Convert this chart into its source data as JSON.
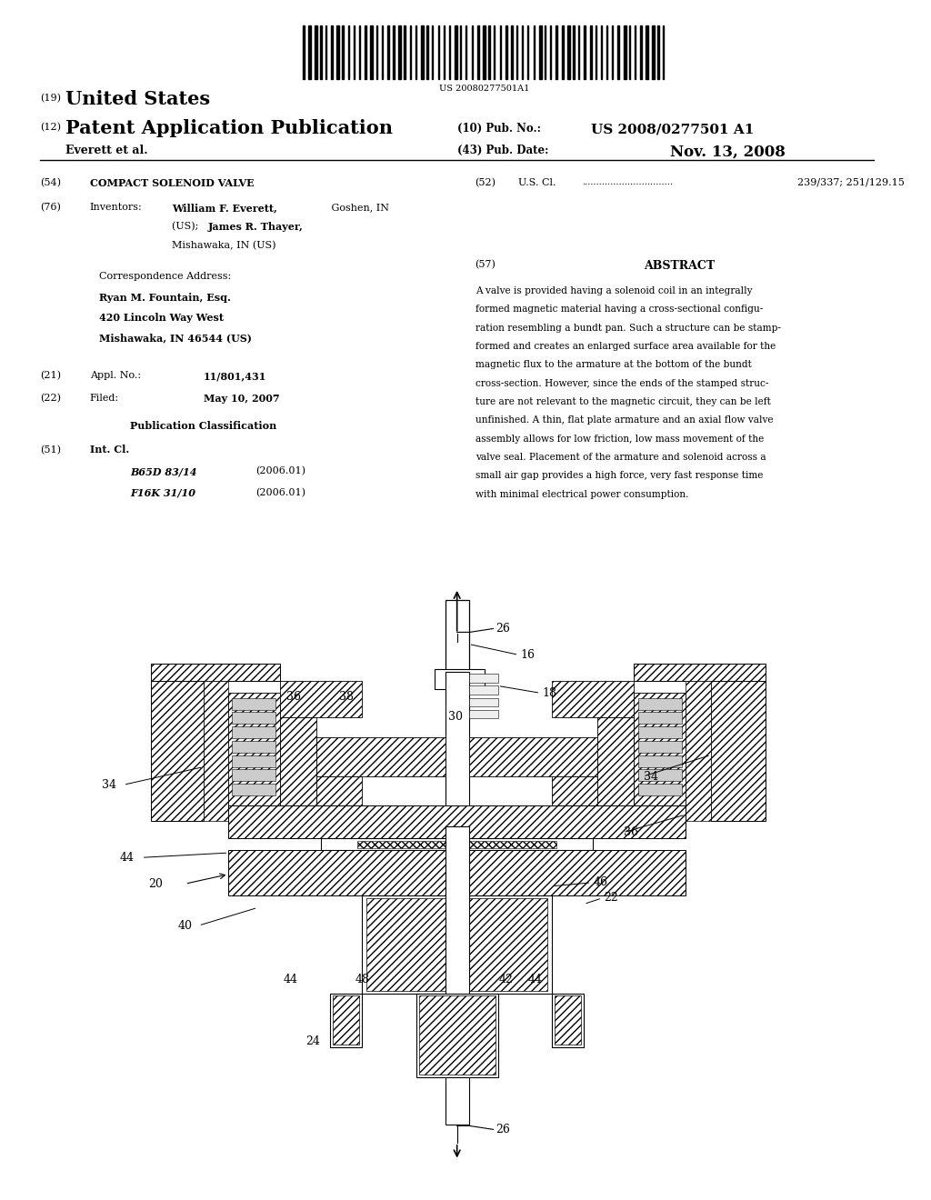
{
  "background_color": "#ffffff",
  "page_width": 10.24,
  "page_height": 13.2,
  "barcode_text": "US 20080277501A1",
  "header": {
    "country_num": "(19)",
    "country": "United States",
    "type_num": "(12)",
    "type": "Patent Application Publication",
    "pub_num_label": "(10) Pub. No.:",
    "pub_num": "US 2008/0277501 A1",
    "inventor_line": "Everett et al.",
    "pub_date_label": "(43) Pub. Date:",
    "pub_date": "Nov. 13, 2008"
  },
  "left_column": {
    "title_num": "(54)",
    "title_label": "COMPACT SOLENOID VALVE",
    "inventors_num": "(76)",
    "inventors_label": "Inventors:",
    "inventors_name1": "William F. Everett,",
    "inventors_loc1": " Goshen, IN",
    "inventors_line2a": "(US); ",
    "inventors_name2": "James R. Thayer,",
    "inventors_line3": "Mishawaka, IN (US)",
    "correspondence_header": "Correspondence Address:",
    "correspondence_name": "Ryan M. Fountain, Esq.",
    "correspondence_addr1": "420 Lincoln Way West",
    "correspondence_addr2": "Mishawaka, IN 46544 (US)",
    "appl_num": "(21)",
    "appl_label": "Appl. No.:",
    "appl_value": "11/801,431",
    "filed_num": "(22)",
    "filed_label": "Filed:",
    "filed_value": "May 10, 2007",
    "pub_class_header": "Publication Classification",
    "int_cl_num": "(51)",
    "int_cl_label": "Int. Cl.",
    "int_cl_entries": [
      {
        "class": "B65D 83/14",
        "year": "(2006.01)"
      },
      {
        "class": "F16K 31/10",
        "year": "(2006.01)"
      }
    ]
  },
  "right_column": {
    "us_cl_num": "(52)",
    "us_cl_label": "U.S. Cl.",
    "us_cl_dots": "................................",
    "us_cl_value": "239/337; 251/129.15",
    "abstract_num": "(57)",
    "abstract_title": "ABSTRACT",
    "abstract_lines": [
      "A valve is provided having a solenoid coil in an integrally",
      "formed magnetic material having a cross-sectional configu-",
      "ration resembling a bundt pan. Such a structure can be stamp-",
      "formed and creates an enlarged surface area available for the",
      "magnetic flux to the armature at the bottom of the bundt",
      "cross-section. However, since the ends of the stamped struc-",
      "ture are not relevant to the magnetic circuit, they can be left",
      "unfinished. A thin, flat plate armature and an axial flow valve",
      "assembly allows for low friction, low mass movement of the",
      "valve seal. Placement of the armature and solenoid across a",
      "small air gap provides a high force, very fast response time",
      "with minimal electrical power consumption."
    ]
  }
}
